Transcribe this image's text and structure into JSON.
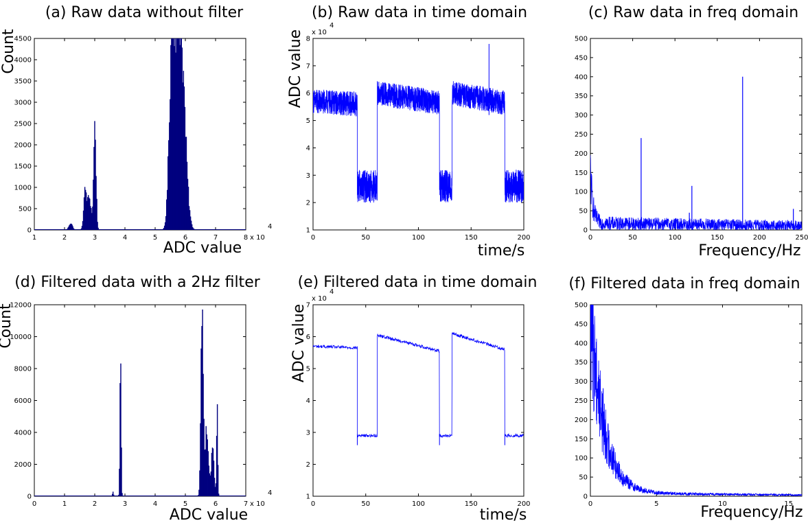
{
  "chart_data": [
    {
      "id": "a",
      "type": "histogram",
      "title": "(a) Raw data without filter",
      "xlabel": "ADC value",
      "ylabel": "Count",
      "xlim": [
        1,
        8
      ],
      "ylim": [
        0,
        4500
      ],
      "xticks": [
        1,
        2,
        3,
        4,
        5,
        6,
        7,
        8
      ],
      "yticks": [
        0,
        500,
        1000,
        1500,
        2000,
        2500,
        3000,
        3500,
        4000,
        4500
      ],
      "x_multiplier": "x 10",
      "x_exponent": "4",
      "color": "#00007f",
      "peaks": [
        {
          "center": 2.2,
          "height": 160,
          "width": 0.06
        },
        {
          "center": 2.68,
          "height": 900,
          "width": 0.05
        },
        {
          "center": 2.82,
          "height": 750,
          "width": 0.06
        },
        {
          "center": 3.0,
          "height": 2450,
          "width": 0.04
        },
        {
          "center": 5.55,
          "height": 3950,
          "width": 0.09
        },
        {
          "center": 5.75,
          "height": 3700,
          "width": 0.12
        },
        {
          "center": 5.92,
          "height": 2500,
          "width": 0.12
        }
      ]
    },
    {
      "id": "b",
      "type": "line",
      "title": "(b) Raw data in time domain",
      "xlabel": "time/s",
      "ylabel": "ADC value",
      "xlim": [
        0,
        200
      ],
      "ylim": [
        1,
        8
      ],
      "xticks": [
        0,
        50,
        100,
        150,
        200
      ],
      "yticks": [
        1,
        2,
        3,
        4,
        5,
        6,
        7,
        8
      ],
      "y_multiplier": "x 10",
      "y_exponent": "4",
      "color": "#0000ff",
      "segments": [
        {
          "t0": 0,
          "t1": 42,
          "start": 5.7,
          "end": 5.6,
          "noise": 0.45
        },
        {
          "t0": 42,
          "t1": 61,
          "start": 2.6,
          "end": 2.6,
          "noise": 0.6
        },
        {
          "t0": 61,
          "t1": 120,
          "start": 6.0,
          "end": 5.65,
          "noise": 0.45
        },
        {
          "t0": 120,
          "t1": 132,
          "start": 2.6,
          "end": 2.6,
          "noise": 0.6
        },
        {
          "t0": 132,
          "t1": 182,
          "start": 6.0,
          "end": 5.65,
          "noise": 0.45
        },
        {
          "t0": 182,
          "t1": 200,
          "start": 2.6,
          "end": 2.6,
          "noise": 0.6
        }
      ],
      "spikes": [
        {
          "t": 167,
          "value": 7.8
        }
      ]
    },
    {
      "id": "c",
      "type": "line",
      "title": "(c) Raw data in freq domain",
      "xlabel": "Frequency/Hz",
      "ylabel": "",
      "xlim": [
        0,
        250
      ],
      "ylim": [
        0,
        500
      ],
      "xticks": [
        0,
        50,
        100,
        150,
        200,
        250
      ],
      "yticks": [
        0,
        50,
        100,
        150,
        200,
        250,
        300,
        350,
        400,
        450,
        500
      ],
      "color": "#0000ff",
      "baseline": {
        "start": 150,
        "decay_hz": 3,
        "floor": 18,
        "floor_end": 10,
        "noise": 10
      },
      "spikes": [
        {
          "f": 60,
          "value": 240
        },
        {
          "f": 117,
          "value": 45
        },
        {
          "f": 120,
          "value": 115
        },
        {
          "f": 180,
          "value": 400
        },
        {
          "f": 240,
          "value": 55
        }
      ]
    },
    {
      "id": "d",
      "type": "histogram",
      "title": "(d) Filtered data with a 2Hz filter",
      "xlabel": "ADC value",
      "ylabel": "Count",
      "xlim": [
        0,
        7
      ],
      "ylim": [
        0,
        12000
      ],
      "xticks": [
        0,
        1,
        2,
        3,
        4,
        5,
        6,
        7
      ],
      "yticks": [
        0,
        2000,
        4000,
        6000,
        8000,
        10000,
        12000
      ],
      "x_multiplier": "x 10",
      "x_exponent": "4",
      "color": "#00007f",
      "peaks": [
        {
          "center": 2.6,
          "height": 250,
          "width": 0.02
        },
        {
          "center": 2.85,
          "height": 10000,
          "width": 0.02
        },
        {
          "center": 5.55,
          "height": 11000,
          "width": 0.04
        },
        {
          "center": 5.7,
          "height": 4000,
          "width": 0.06
        },
        {
          "center": 5.9,
          "height": 2800,
          "width": 0.05
        },
        {
          "center": 6.05,
          "height": 5200,
          "width": 0.02
        }
      ]
    },
    {
      "id": "e",
      "type": "line",
      "title": "(e) Filtered data in time domain",
      "xlabel": "time/s",
      "ylabel": "ADC value",
      "xlim": [
        0,
        200
      ],
      "ylim": [
        1,
        7
      ],
      "xticks": [
        0,
        50,
        100,
        150,
        200
      ],
      "yticks": [
        1,
        2,
        3,
        4,
        5,
        6,
        7
      ],
      "y_multiplier": "x 10",
      "y_exponent": "4",
      "color": "#0000ff",
      "segments": [
        {
          "t0": 0,
          "t1": 42,
          "start": 5.7,
          "end": 5.65,
          "noise": 0.05
        },
        {
          "t0": 42,
          "t1": 61,
          "start": 2.9,
          "end": 2.9,
          "noise": 0.05
        },
        {
          "t0": 61,
          "t1": 120,
          "start": 6.05,
          "end": 5.55,
          "noise": 0.05
        },
        {
          "t0": 120,
          "t1": 132,
          "start": 2.9,
          "end": 2.9,
          "noise": 0.05
        },
        {
          "t0": 132,
          "t1": 182,
          "start": 6.1,
          "end": 5.6,
          "noise": 0.05
        },
        {
          "t0": 182,
          "t1": 200,
          "start": 2.9,
          "end": 2.9,
          "noise": 0.05
        }
      ],
      "dips": [
        {
          "t": 42,
          "value": 2.6
        },
        {
          "t": 120,
          "value": 2.6
        },
        {
          "t": 182,
          "value": 2.6
        }
      ]
    },
    {
      "id": "f",
      "type": "line",
      "title": "(f) Filtered data in freq domain",
      "xlabel": "Frequency/Hz",
      "ylabel": "",
      "xlim": [
        0,
        16
      ],
      "ylim": [
        0,
        500
      ],
      "xticks": [
        0,
        5,
        10,
        15
      ],
      "yticks": [
        0,
        50,
        100,
        150,
        200,
        250,
        300,
        350,
        400,
        450,
        500
      ],
      "color": "#0000ff",
      "baseline": {
        "start": 500,
        "decay_hz": 1.0,
        "floor": 8,
        "floor_end": 3,
        "noise": 1.0
      }
    }
  ]
}
